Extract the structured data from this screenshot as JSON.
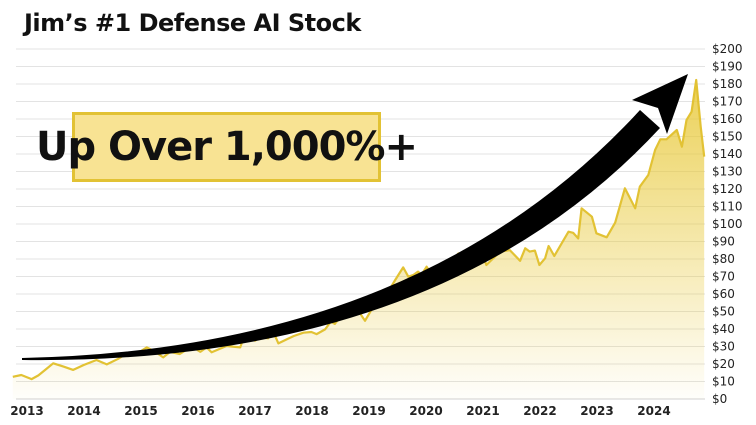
{
  "chart_data": {
    "type": "area",
    "title": "Jim’s #1 Defense AI Stock",
    "annotation": "Up Over 1,000%+",
    "xlabel": "",
    "ylabel": "",
    "xlim": [
      2012.75,
      2024.88
    ],
    "ylim": [
      0,
      200
    ],
    "x_ticks": [
      "2013",
      "2014",
      "2015",
      "2016",
      "2017",
      "2018",
      "2019",
      "2020",
      "2021",
      "2022",
      "2023",
      "2024"
    ],
    "y_ticks": [
      "$0",
      "$10",
      "$20",
      "$30",
      "$40",
      "$50",
      "$60",
      "$70",
      "$80",
      "$90",
      "$100",
      "$110",
      "$120",
      "$130",
      "$140",
      "$150",
      "$160",
      "$170",
      "$180",
      "$190",
      "$200"
    ],
    "y_tick_values": [
      0,
      10,
      20,
      30,
      40,
      50,
      60,
      70,
      80,
      90,
      100,
      110,
      120,
      130,
      140,
      150,
      160,
      170,
      180,
      190,
      200
    ],
    "grid": true,
    "line_color": "#e2c234",
    "fill_color": "#e8c93a",
    "arrow_color": "#000000",
    "series": [
      {
        "x": [
          2012.75,
          2012.9,
          2013.08,
          2013.2,
          2013.32,
          2013.46,
          2013.64,
          2013.81,
          2014.0,
          2014.22,
          2014.4,
          2014.6,
          2014.75,
          2014.92,
          2015.1,
          2015.25,
          2015.39,
          2015.51,
          2015.68,
          2015.89,
          2016.04,
          2016.15,
          2016.24,
          2016.5,
          2016.74,
          2016.82,
          2017.0,
          2017.09,
          2017.23,
          2017.32,
          2017.41,
          2017.56,
          2017.68,
          2017.85,
          2017.99,
          2018.08,
          2018.23,
          2018.33,
          2018.4,
          2018.58,
          2018.7,
          2018.81,
          2018.93,
          2019.16,
          2019.25,
          2019.37,
          2019.46,
          2019.57,
          2019.6,
          2019.69,
          2019.78,
          2019.86,
          2019.92,
          2020.01,
          2020.16,
          2020.33,
          2020.42,
          2020.57,
          2020.74,
          2020.86,
          2020.95,
          2021.06,
          2021.3,
          2021.47,
          2021.65,
          2021.74,
          2021.82,
          2021.91,
          2021.99,
          2022.09,
          2022.15,
          2022.25,
          2022.38,
          2022.5,
          2022.58,
          2022.67,
          2022.73,
          2022.91,
          2022.99,
          2023.17,
          2023.32,
          2023.49,
          2023.67,
          2023.75,
          2023.9,
          2024.02,
          2024.11,
          2024.22,
          2024.4,
          2024.49,
          2024.57,
          2024.66,
          2024.74,
          2024.82,
          2024.88
        ],
        "y": [
          12.7,
          13.7,
          11.4,
          13.5,
          16.6,
          20.4,
          18.5,
          16.6,
          19.5,
          22.3,
          19.8,
          23,
          26.1,
          25.7,
          29.5,
          27,
          23.8,
          26.9,
          25.7,
          30,
          27,
          29.5,
          26.7,
          30.3,
          29.5,
          36.6,
          33.3,
          35.2,
          34.7,
          38.5,
          31.8,
          34.1,
          36,
          37.9,
          38.3,
          37.1,
          39.8,
          44.2,
          42.9,
          50.5,
          48.6,
          50.5,
          44.7,
          57.5,
          58.9,
          63.2,
          68,
          73.7,
          75.2,
          69.9,
          70.9,
          72.8,
          70.9,
          75.6,
          68.4,
          78.5,
          77.5,
          83.2,
          78.5,
          86.7,
          86.1,
          76.6,
          84.2,
          85.1,
          79,
          86.1,
          84.2,
          84.8,
          76.6,
          80.4,
          87.4,
          81.7,
          89,
          95.6,
          95,
          91.8,
          109,
          104.2,
          94.7,
          92.4,
          100.8,
          120.4,
          109,
          121.3,
          128,
          142.3,
          148.4,
          148.4,
          153.7,
          144.2,
          159.4,
          164.2,
          182.3,
          155.6,
          138.5
        ]
      }
    ]
  }
}
